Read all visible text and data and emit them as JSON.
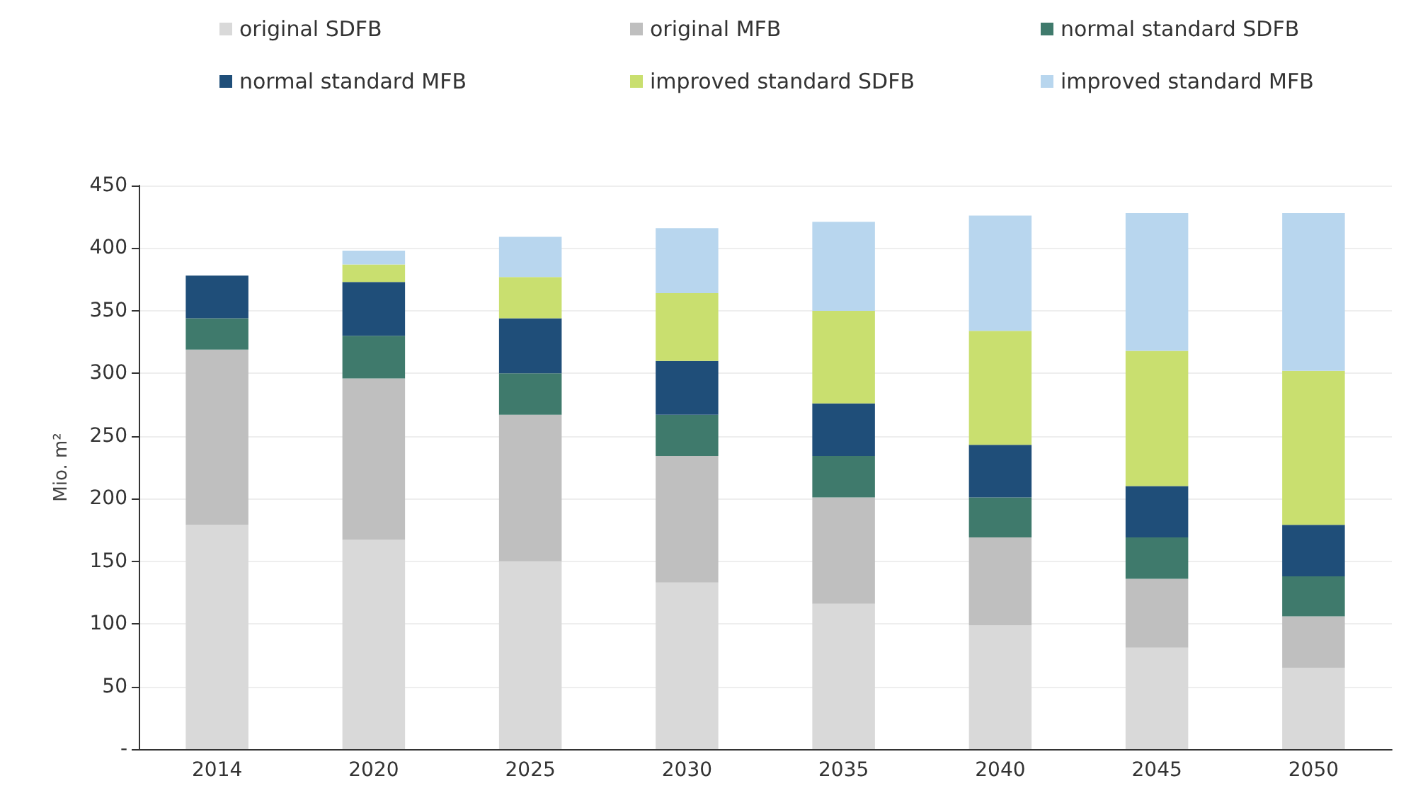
{
  "chart_data": {
    "type": "bar",
    "stacked": true,
    "ylabel": "Mio. m²",
    "categories": [
      "2014",
      "2020",
      "2025",
      "2030",
      "2035",
      "2040",
      "2045",
      "2050"
    ],
    "series": [
      {
        "name": "original SDFB",
        "color": "#d9d9d9",
        "values": [
          179,
          167,
          150,
          133,
          116,
          99,
          81,
          65
        ]
      },
      {
        "name": "original MFB",
        "color": "#bfbfbf",
        "values": [
          140,
          129,
          117,
          101,
          85,
          70,
          55,
          41
        ]
      },
      {
        "name": "normal standard SDFB",
        "color": "#3f7a6c",
        "values": [
          25,
          34,
          33,
          33,
          33,
          32,
          33,
          32
        ]
      },
      {
        "name": "normal standard MFB",
        "color": "#1f4e79",
        "values": [
          34,
          43,
          44,
          43,
          42,
          42,
          41,
          41
        ]
      },
      {
        "name": "improved standard SDFB",
        "color": "#c9df6f",
        "values": [
          0,
          14,
          33,
          54,
          74,
          91,
          108,
          123
        ]
      },
      {
        "name": "improved standard MFB",
        "color": "#b8d6ee",
        "values": [
          0,
          11,
          32,
          52,
          71,
          92,
          110,
          126
        ]
      }
    ],
    "ylim": [
      0,
      450
    ],
    "yticks": [
      {
        "value": 0,
        "label": "-"
      },
      50,
      100,
      150,
      200,
      250,
      300,
      350,
      400,
      450
    ],
    "grid": "y",
    "legend": "top"
  }
}
